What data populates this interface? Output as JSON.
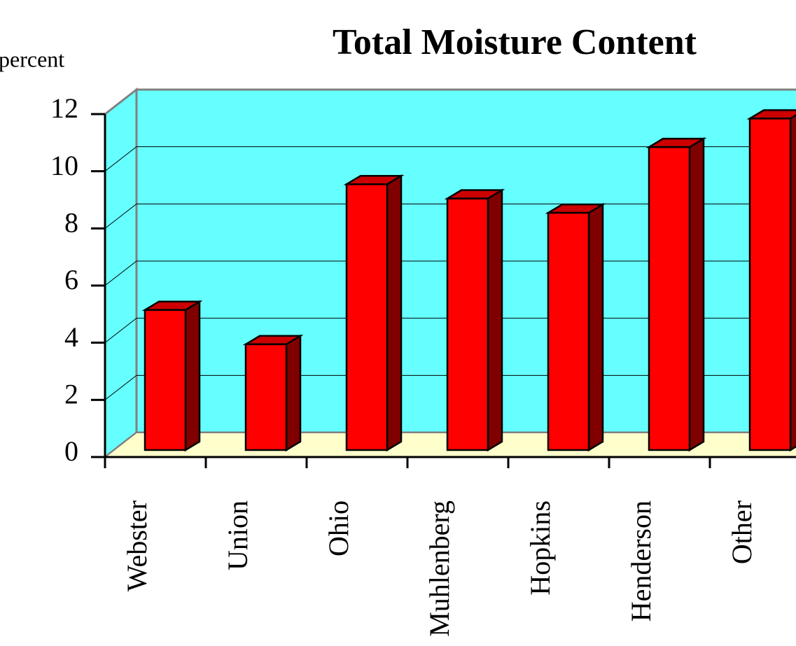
{
  "chart_data": {
    "type": "bar3d",
    "title": "Total Moisture Content",
    "y_axis_label": "percent",
    "categories": [
      "Webster",
      "Union",
      "Ohio",
      "Muhlenberg",
      "Hopkins",
      "Henderson",
      "Other"
    ],
    "values": [
      4.9,
      3.7,
      9.3,
      8.8,
      8.3,
      10.6,
      11.6
    ],
    "color": "#ff0000",
    "ylim": [
      0,
      12
    ],
    "yticks": [
      0,
      2,
      4,
      6,
      8,
      10,
      12
    ],
    "grid": true
  }
}
